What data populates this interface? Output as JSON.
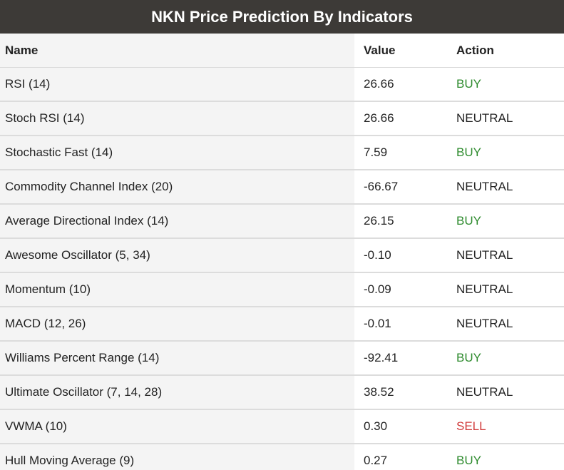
{
  "title": "NKN Price Prediction By Indicators",
  "columns": {
    "name": "Name",
    "value": "Value",
    "action": "Action"
  },
  "colors": {
    "buy": "#2e8b2e",
    "sell": "#d13b3b",
    "neutral": "#222222",
    "title_bar": "#3d3a37"
  },
  "rows": [
    {
      "name": "RSI (14)",
      "value": "26.66",
      "action": "BUY"
    },
    {
      "name": "Stoch RSI (14)",
      "value": "26.66",
      "action": "NEUTRAL"
    },
    {
      "name": "Stochastic Fast (14)",
      "value": "7.59",
      "action": "BUY"
    },
    {
      "name": "Commodity Channel Index (20)",
      "value": "-66.67",
      "action": "NEUTRAL"
    },
    {
      "name": "Average Directional Index (14)",
      "value": "26.15",
      "action": "BUY"
    },
    {
      "name": "Awesome Oscillator (5, 34)",
      "value": "-0.10",
      "action": "NEUTRAL"
    },
    {
      "name": "Momentum (10)",
      "value": "-0.09",
      "action": "NEUTRAL"
    },
    {
      "name": "MACD (12, 26)",
      "value": "-0.01",
      "action": "NEUTRAL"
    },
    {
      "name": "Williams Percent Range (14)",
      "value": "-92.41",
      "action": "BUY"
    },
    {
      "name": "Ultimate Oscillator (7, 14, 28)",
      "value": "38.52",
      "action": "NEUTRAL"
    },
    {
      "name": "VWMA (10)",
      "value": "0.30",
      "action": "SELL"
    },
    {
      "name": "Hull Moving Average (9)",
      "value": "0.27",
      "action": "BUY"
    }
  ]
}
